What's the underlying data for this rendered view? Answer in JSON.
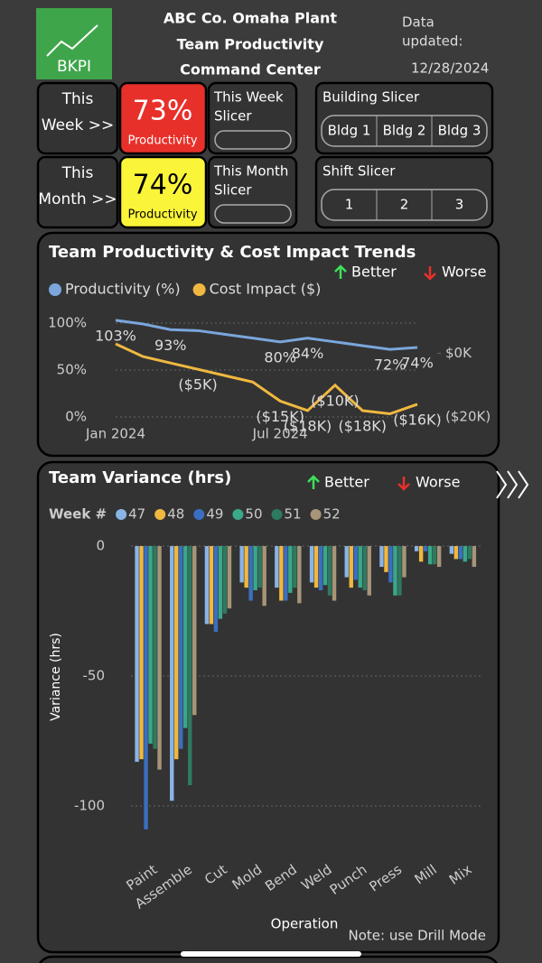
{
  "header": {
    "logo": "BKPI",
    "title_lines": [
      "ABC Co. Omaha Plant",
      "Team Productivity",
      "Command Center"
    ],
    "updated_lines": [
      "Data",
      "updated:"
    ],
    "updated_date": "12/28/2024"
  },
  "kpis": [
    {
      "label_lines": [
        "This",
        "Week >>"
      ],
      "value": "73%",
      "caption": "Productivity",
      "color": "#e8302a",
      "slicer_lines": [
        "This Week",
        "Slicer"
      ]
    },
    {
      "label_lines": [
        "This",
        "Month >>"
      ],
      "value": "74%",
      "caption": "Productivity",
      "color": "#fbf53a",
      "slicer_lines": [
        "This Month",
        "Slicer"
      ]
    }
  ],
  "slicers": [
    {
      "title": "Building Slicer",
      "options": [
        "Bldg 1",
        "Bldg 2",
        "Bldg 3"
      ]
    },
    {
      "title": "Shift Slicer",
      "options": [
        "1",
        "2",
        "3"
      ]
    }
  ],
  "chart_data": [
    {
      "type": "line",
      "title": "Team Productivity & Cost Impact Trends",
      "better_label": "Better",
      "worse_label": "Worse",
      "categories": [
        "Jan 2024",
        null,
        null,
        null,
        null,
        null,
        "Jul 2024",
        null,
        null,
        null,
        null,
        null
      ],
      "series": [
        {
          "name": "Productivity (%)",
          "color": "#7aa6dc",
          "values": [
            103,
            99,
            93,
            92,
            88,
            84,
            80,
            84,
            80,
            76,
            72,
            74
          ],
          "value_labels": [
            "103%",
            null,
            "93%",
            null,
            null,
            null,
            "80%",
            "84%",
            null,
            null,
            "72%",
            "74%"
          ]
        },
        {
          "name": "Cost Impact ($)",
          "color": "#f0b840",
          "axis": "y2",
          "values": [
            3,
            -1,
            -3,
            -5,
            -7,
            -9,
            -15,
            -18,
            -10,
            -18,
            -19,
            -16
          ],
          "value_labels": [
            null,
            null,
            null,
            "($5K)",
            null,
            null,
            "($15K)",
            "($18K)",
            "($10K)",
            "($18K)",
            null,
            "($16K)"
          ]
        }
      ],
      "ylim": [
        0,
        110
      ],
      "yticks": [
        {
          "value": 0,
          "label": "0%"
        },
        {
          "value": 50,
          "label": "50%"
        },
        {
          "value": 100,
          "label": "100%"
        }
      ],
      "y2lim": [
        -20,
        12.5
      ],
      "y2ticks": [
        {
          "value": 0,
          "label": "$0K"
        },
        {
          "value": -20,
          "label": "($20K)"
        }
      ],
      "grid": true
    },
    {
      "type": "bar",
      "title": "Team Variance (hrs)",
      "better_label": "Better",
      "worse_label": "Worse",
      "legend_title": "Week #",
      "x_label": "Operation",
      "y_label": "Variance (hrs)",
      "note": "Note: use Drill Mode",
      "categories": [
        "Paint",
        "Assemble",
        "Cut",
        "Mold",
        "Bend",
        "Weld",
        "Punch",
        "Press",
        "Mill",
        "Mix"
      ],
      "series": [
        {
          "name": "47",
          "color": "#8ab4e6",
          "values": [
            -83,
            -98,
            -30,
            -14,
            -16,
            -14,
            -12,
            -8,
            -2,
            -3
          ]
        },
        {
          "name": "48",
          "color": "#f0b840",
          "values": [
            -82,
            -82,
            -30,
            -16,
            -21,
            -16,
            -16,
            -10,
            -6,
            -5
          ]
        },
        {
          "name": "49",
          "color": "#3a6fc0",
          "values": [
            -109,
            -78,
            -33,
            -21,
            -21,
            -17,
            -13,
            -14,
            -2,
            -5
          ]
        },
        {
          "name": "50",
          "color": "#3aa88a",
          "values": [
            -76,
            -70,
            -28,
            -17,
            -18,
            -15,
            -16,
            -19,
            -7,
            -6
          ]
        },
        {
          "name": "51",
          "color": "#2e7a60",
          "values": [
            -78,
            -92,
            -26,
            -16,
            -16,
            -19,
            -17,
            -19,
            -7,
            -5
          ]
        },
        {
          "name": "52",
          "color": "#a89478",
          "values": [
            -86,
            -65,
            -24,
            -23,
            -22,
            -21,
            -19,
            -12,
            -8,
            -8
          ]
        }
      ],
      "ylim": [
        -112,
        3
      ],
      "yticks": [
        0,
        -50,
        -100
      ],
      "grid": true
    }
  ]
}
